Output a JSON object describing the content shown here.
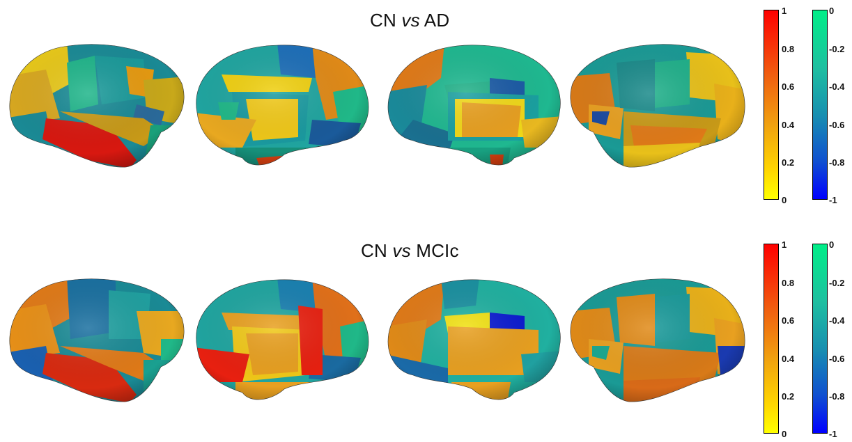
{
  "panels": [
    {
      "title_pre": "CN ",
      "title_vs": "vs",
      "title_post": " AD"
    },
    {
      "title_pre": "CN ",
      "title_vs": "vs",
      "title_post": " MCIc"
    }
  ],
  "colorbars": {
    "positive": {
      "ticks": [
        "1",
        "0.8",
        "0.6",
        "0.4",
        "0.2",
        "0"
      ],
      "colors": [
        "#ff0000",
        "#f08000",
        "#ffd700",
        "#ffff00"
      ]
    },
    "negative": {
      "ticks": [
        "0",
        "-0.2",
        "-0.4",
        "-0.6",
        "-0.8",
        "-1"
      ],
      "colors": [
        "#00ee88",
        "#20b0a0",
        "#1070c0",
        "#0000ff"
      ]
    }
  }
}
